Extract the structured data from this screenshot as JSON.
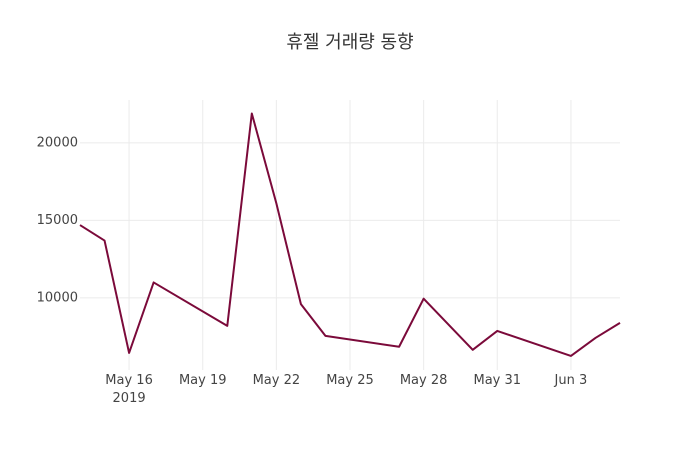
{
  "chart_data": {
    "type": "line",
    "title": "휴젤 거래량 동향",
    "x": [
      "2019-05-14",
      "2019-05-15",
      "2019-05-16",
      "2019-05-17",
      "2019-05-20",
      "2019-05-21",
      "2019-05-22",
      "2019-05-23",
      "2019-05-24",
      "2019-05-27",
      "2019-05-28",
      "2019-05-30",
      "2019-05-31",
      "2019-06-03",
      "2019-06-04",
      "2019-06-05"
    ],
    "series": [
      {
        "color": "#7b0a3a",
        "values": [
          14700,
          13700,
          6450,
          11000,
          8200,
          21900,
          16100,
          9600,
          7550,
          6850,
          9950,
          6650,
          7870,
          6260,
          7420,
          8390
        ]
      }
    ],
    "xlim": [
      "2019-05-14",
      "2019-06-05"
    ],
    "xticks": [
      {
        "value": "2019-05-16",
        "label": "May 16\n2019"
      },
      {
        "value": "2019-05-19",
        "label": "May 19"
      },
      {
        "value": "2019-05-22",
        "label": "May 22"
      },
      {
        "value": "2019-05-25",
        "label": "May 25"
      },
      {
        "value": "2019-05-28",
        "label": "May 28"
      },
      {
        "value": "2019-05-31",
        "label": "May 31"
      },
      {
        "value": "2019-06-03",
        "label": "Jun 3"
      }
    ],
    "ylim": [
      5350,
      22770
    ],
    "yticks": [
      10000,
      15000,
      20000
    ],
    "grid": true
  }
}
